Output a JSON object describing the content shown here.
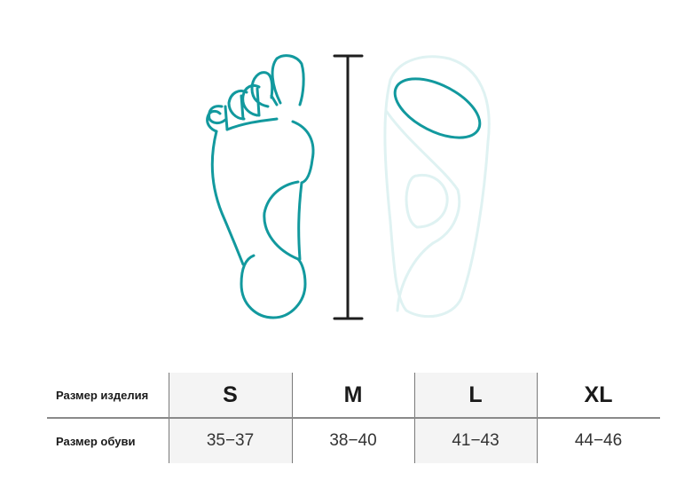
{
  "colors": {
    "accent": "#12999e",
    "accent_light": "#dff2f2",
    "ruler": "#1e1e1e",
    "shade": "#f4f4f4"
  },
  "illustration": {
    "icons": [
      "foot-outline-icon",
      "height-ruler-icon",
      "insole-icon"
    ]
  },
  "table": {
    "row_headers": [
      "Размер изделия",
      "Размер обуви"
    ],
    "sizes": [
      "S",
      "M",
      "L",
      "XL"
    ],
    "shoe_sizes": [
      "35−37",
      "38−40",
      "41−43",
      "44−46"
    ]
  }
}
